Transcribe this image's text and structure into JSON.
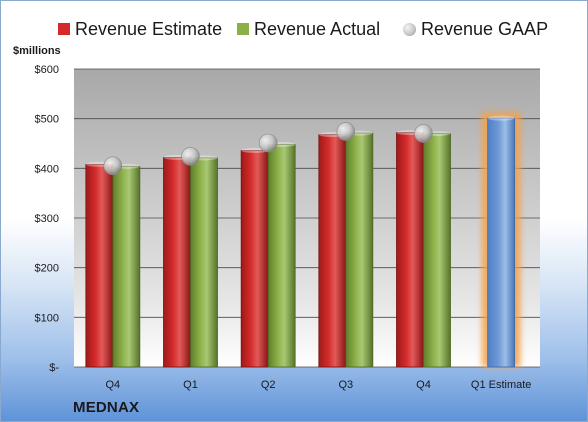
{
  "legend": {
    "estimate": "Revenue Estimate",
    "actual": "Revenue Actual",
    "gaap": "Revenue GAAP"
  },
  "unit_label": "$millions",
  "brand": "MEDNAX",
  "colors": {
    "estimate": "#d42a2a",
    "actual": "#8cb048",
    "gaap": "#c8c8c8",
    "forecast": "#6e9ad6",
    "forecast_glow": "#f5a04a",
    "plot_top": "#a8a8a8",
    "plot_bottom": "#ffffff"
  },
  "chart_data": {
    "type": "bar",
    "categories": [
      "Q4",
      "Q1",
      "Q2",
      "Q3",
      "Q4",
      "Q1 Estimate"
    ],
    "series": [
      {
        "name": "Revenue Estimate",
        "values": [
          408,
          422,
          436,
          468,
          472,
          null
        ]
      },
      {
        "name": "Revenue Actual",
        "values": [
          404,
          421,
          448,
          471,
          470,
          null
        ]
      },
      {
        "name": "Revenue GAAP",
        "kind": "marker",
        "values": [
          405,
          424,
          451,
          474,
          470,
          null
        ]
      },
      {
        "name": "Q1 Estimate",
        "values": [
          null,
          null,
          null,
          null,
          null,
          501
        ]
      }
    ],
    "y_ticks": [
      0,
      100,
      200,
      300,
      400,
      500,
      600
    ],
    "y_tick_labels": [
      "$-",
      "$100",
      "$200",
      "$300",
      "$400",
      "$500",
      "$600"
    ],
    "ylim": [
      0,
      600
    ],
    "grid": true,
    "legend_position": "top"
  }
}
